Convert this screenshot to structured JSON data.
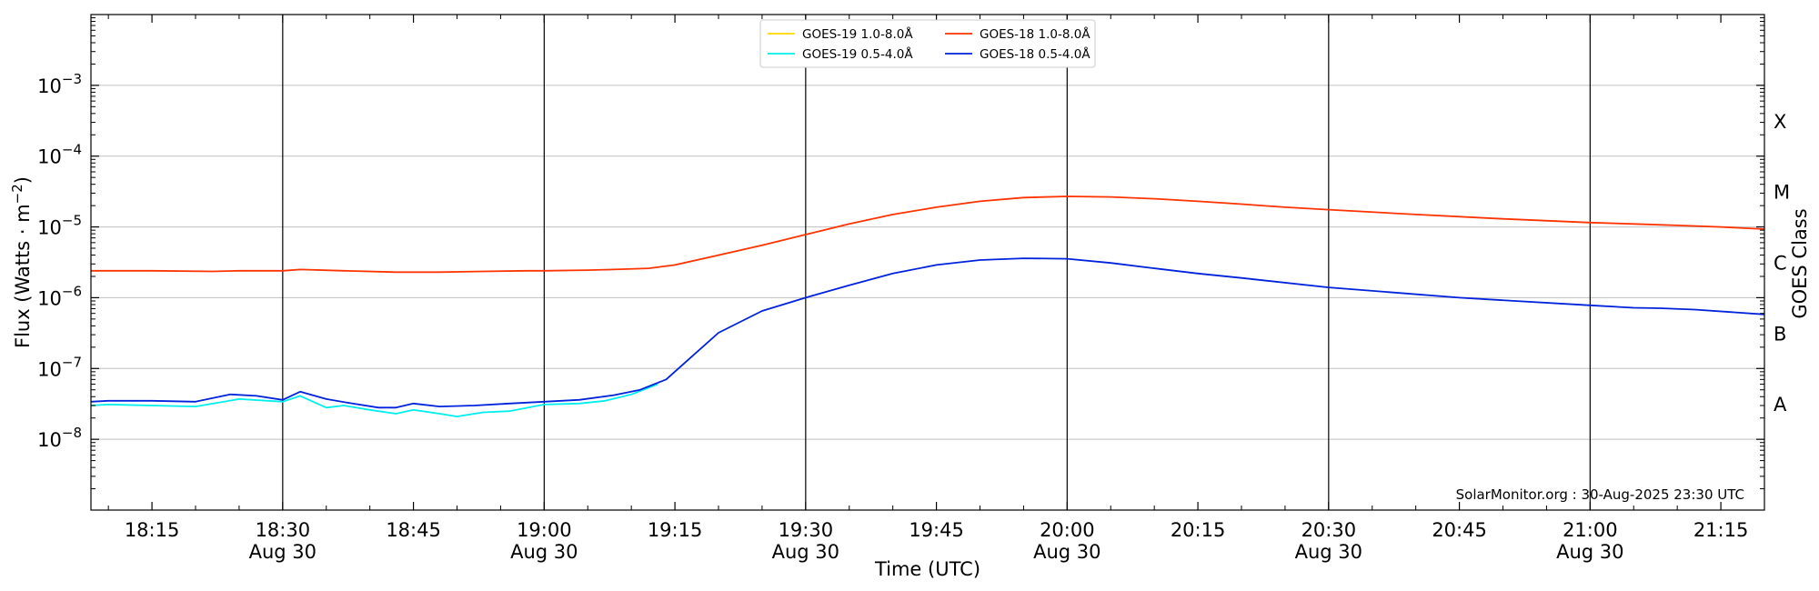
{
  "chart_data": {
    "type": "line",
    "xlabel": "Time (UTC)",
    "ylabel": "Flux (Watts · m",
    "ylabel_sup": "−2",
    "ylabel_close": ")",
    "right_axis_label": "GOES Class",
    "credit": "SolarMonitor.org : 30-Aug-2025 23:30 UTC",
    "yscale": "log",
    "ylim": [
      1e-09,
      0.01
    ],
    "xlim": [
      "18:08",
      "21:20"
    ],
    "x_tick_labels": [
      {
        "time": "18:15",
        "line1": "18:15",
        "line2": ""
      },
      {
        "time": "18:30",
        "line1": "18:30",
        "line2": "Aug 30"
      },
      {
        "time": "18:45",
        "line1": "18:45",
        "line2": ""
      },
      {
        "time": "19:00",
        "line1": "19:00",
        "line2": "Aug 30"
      },
      {
        "time": "19:15",
        "line1": "19:15",
        "line2": ""
      },
      {
        "time": "19:30",
        "line1": "19:30",
        "line2": "Aug 30"
      },
      {
        "time": "19:45",
        "line1": "19:45",
        "line2": ""
      },
      {
        "time": "20:00",
        "line1": "20:00",
        "line2": "Aug 30"
      },
      {
        "time": "20:15",
        "line1": "20:15",
        "line2": ""
      },
      {
        "time": "20:30",
        "line1": "20:30",
        "line2": "Aug 30"
      },
      {
        "time": "20:45",
        "line1": "20:45",
        "line2": ""
      },
      {
        "time": "21:00",
        "line1": "21:00",
        "line2": "Aug 30"
      },
      {
        "time": "21:15",
        "line1": "21:15",
        "line2": ""
      }
    ],
    "vertical_lines": [
      "18:30",
      "19:00",
      "19:30",
      "20:00",
      "20:30",
      "21:00"
    ],
    "y_ticks": [
      {
        "value": 1e-08,
        "base": "10",
        "exp": "−8"
      },
      {
        "value": 1e-07,
        "base": "10",
        "exp": "−7"
      },
      {
        "value": 1e-06,
        "base": "10",
        "exp": "−6"
      },
      {
        "value": 1e-05,
        "base": "10",
        "exp": "−5"
      },
      {
        "value": 0.0001,
        "base": "10",
        "exp": "−4"
      },
      {
        "value": 0.001,
        "base": "10",
        "exp": "−3"
      }
    ],
    "goes_classes": [
      {
        "label": "A",
        "value": 3.16e-08
      },
      {
        "label": "B",
        "value": 3.16e-07
      },
      {
        "label": "C",
        "value": 3.16e-06
      },
      {
        "label": "M",
        "value": 3.16e-05
      },
      {
        "label": "X",
        "value": 0.000316
      }
    ],
    "grid": true,
    "legend_position": "top-center",
    "legend_columns": 2,
    "series": [
      {
        "name": "GOES-19 1.0-8.0Å",
        "color": "#FFD700",
        "x": [],
        "y": []
      },
      {
        "name": "GOES-18 1.0-8.0Å",
        "color": "#FF3300",
        "x": [
          "18:08",
          "18:15",
          "18:22",
          "18:25",
          "18:30",
          "18:32",
          "18:37",
          "18:43",
          "18:48",
          "18:53",
          "18:58",
          "19:00",
          "19:05",
          "19:08",
          "19:12",
          "19:15",
          "19:20",
          "19:25",
          "19:30",
          "19:35",
          "19:40",
          "19:45",
          "19:50",
          "19:55",
          "20:00",
          "20:05",
          "20:10",
          "20:15",
          "20:20",
          "20:25",
          "20:30",
          "20:40",
          "20:50",
          "21:00",
          "21:05",
          "21:10",
          "21:15",
          "21:20"
        ],
        "y": [
          2.4e-06,
          2.4e-06,
          2.35e-06,
          2.4e-06,
          2.4e-06,
          2.5e-06,
          2.4e-06,
          2.3e-06,
          2.3e-06,
          2.35e-06,
          2.4e-06,
          2.4e-06,
          2.45e-06,
          2.5e-06,
          2.6e-06,
          2.9e-06,
          4e-06,
          5.5e-06,
          7.8e-06,
          1.1e-05,
          1.5e-05,
          1.9e-05,
          2.3e-05,
          2.6e-05,
          2.7e-05,
          2.65e-05,
          2.5e-05,
          2.3e-05,
          2.1e-05,
          1.9e-05,
          1.75e-05,
          1.5e-05,
          1.3e-05,
          1.15e-05,
          1.1e-05,
          1.05e-05,
          1e-05,
          9.3e-06
        ]
      },
      {
        "name": "GOES-19 0.5-4.0Å",
        "color": "#00EEEE",
        "x": [
          "18:08",
          "18:10",
          "18:15",
          "18:20",
          "18:25",
          "18:30",
          "18:32",
          "18:35",
          "18:37",
          "18:40",
          "18:43",
          "18:45",
          "18:48",
          "18:50",
          "18:53",
          "18:56",
          "19:00",
          "19:04",
          "19:07",
          "19:10",
          "19:13"
        ],
        "y": [
          3e-08,
          3.1e-08,
          3e-08,
          2.9e-08,
          3.7e-08,
          3.4e-08,
          4.1e-08,
          2.8e-08,
          3e-08,
          2.6e-08,
          2.3e-08,
          2.6e-08,
          2.3e-08,
          2.1e-08,
          2.4e-08,
          2.5e-08,
          3.1e-08,
          3.2e-08,
          3.5e-08,
          4.3e-08,
          6e-08
        ]
      },
      {
        "name": "GOES-18 0.5-4.0Å",
        "color": "#0022DD",
        "x": [
          "18:08",
          "18:10",
          "18:15",
          "18:20",
          "18:24",
          "18:27",
          "18:30",
          "18:32",
          "18:35",
          "18:38",
          "18:41",
          "18:43",
          "18:45",
          "18:48",
          "18:52",
          "18:56",
          "19:00",
          "19:04",
          "19:08",
          "19:11",
          "19:14",
          "19:17",
          "19:20",
          "19:25",
          "19:30",
          "19:35",
          "19:40",
          "19:45",
          "19:50",
          "19:55",
          "20:00",
          "20:05",
          "20:10",
          "20:15",
          "20:20",
          "20:30",
          "20:45",
          "21:00",
          "21:05",
          "21:08",
          "21:12",
          "21:20"
        ],
        "y": [
          3.4e-08,
          3.5e-08,
          3.5e-08,
          3.4e-08,
          4.3e-08,
          4.1e-08,
          3.6e-08,
          4.7e-08,
          3.7e-08,
          3.2e-08,
          2.8e-08,
          2.8e-08,
          3.2e-08,
          2.9e-08,
          3e-08,
          3.2e-08,
          3.4e-08,
          3.6e-08,
          4.2e-08,
          5e-08,
          7e-08,
          1.5e-07,
          3.2e-07,
          6.5e-07,
          1e-06,
          1.5e-06,
          2.2e-06,
          2.9e-06,
          3.4e-06,
          3.6e-06,
          3.55e-06,
          3.1e-06,
          2.6e-06,
          2.2e-06,
          1.9e-06,
          1.4e-06,
          1e-06,
          7.8e-07,
          7.2e-07,
          7.1e-07,
          6.8e-07,
          5.8e-07
        ]
      }
    ]
  }
}
